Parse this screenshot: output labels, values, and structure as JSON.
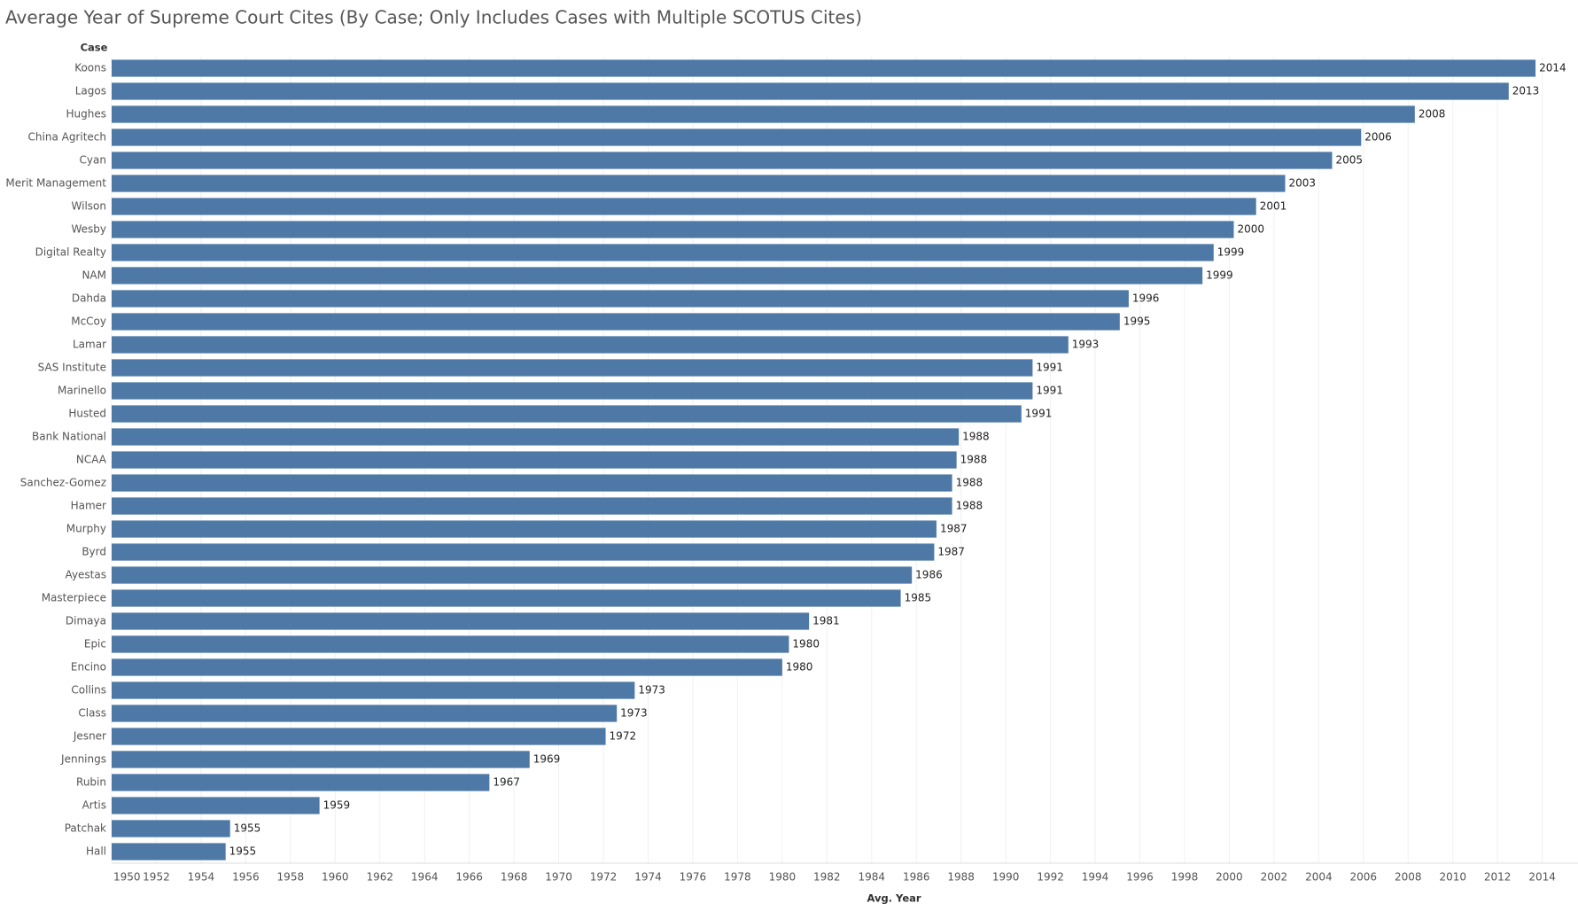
{
  "chart_data": {
    "type": "bar",
    "orientation": "horizontal",
    "title": "Average Year of Supreme Court Cites (By Case; Only Includes Cases with Multiple SCOTUS Cites)",
    "category_header": "Case",
    "x_label": "Avg. Year",
    "color": "#4e79a7",
    "grid": true,
    "categories": [
      "Koons",
      "Lagos",
      "Hughes",
      "China Agritech",
      "Cyan",
      "Merit Management",
      "Wilson",
      "Wesby",
      "Digital Realty",
      "NAM",
      "Dahda",
      "McCoy",
      "Lamar",
      "SAS Institute",
      "Marinello",
      "Husted",
      "Bank National",
      "NCAA",
      "Sanchez-Gomez",
      "Hamer",
      "Murphy",
      "Byrd",
      "Ayestas",
      "Masterpiece",
      "Dimaya",
      "Epic",
      "Encino",
      "Collins",
      "Class",
      "Jesner",
      "Jennings",
      "Rubin",
      "Artis",
      "Patchak",
      "Hall"
    ],
    "values": [
      2013.7,
      2012.5,
      2008.3,
      2005.9,
      2004.6,
      2002.5,
      2001.2,
      2000.2,
      1999.3,
      1998.8,
      1995.5,
      1995.1,
      1992.8,
      1991.2,
      1991.2,
      1990.7,
      1987.9,
      1987.8,
      1987.6,
      1987.6,
      1986.9,
      1986.8,
      1985.8,
      1985.3,
      1981.2,
      1980.3,
      1980.0,
      1973.4,
      1972.6,
      1972.1,
      1968.7,
      1966.9,
      1959.3,
      1955.3,
      1955.1
    ],
    "value_labels": [
      "2014",
      "2013",
      "2008",
      "2006",
      "2005",
      "2003",
      "2001",
      "2000",
      "1999",
      "1999",
      "1996",
      "1995",
      "1993",
      "1991",
      "1991",
      "1991",
      "1988",
      "1988",
      "1988",
      "1988",
      "1987",
      "1987",
      "1986",
      "1985",
      "1981",
      "1980",
      "1980",
      "1973",
      "1973",
      "1972",
      "1969",
      "1967",
      "1959",
      "1955",
      "1955"
    ],
    "xlim": [
      1950,
      2015.6
    ],
    "xticks": [
      1950,
      1952,
      1954,
      1956,
      1958,
      1960,
      1962,
      1964,
      1966,
      1968,
      1970,
      1972,
      1974,
      1976,
      1978,
      1980,
      1982,
      1984,
      1986,
      1988,
      1990,
      1992,
      1994,
      1996,
      1998,
      2000,
      2002,
      2004,
      2006,
      2008,
      2010,
      2012,
      2014
    ]
  }
}
